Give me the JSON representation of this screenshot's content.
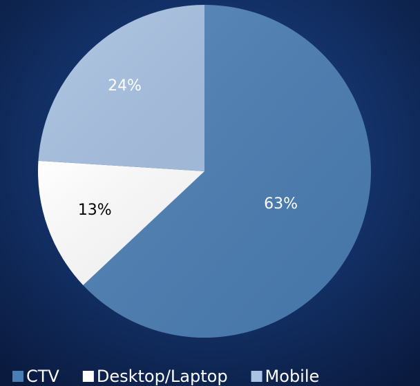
{
  "chart_data": {
    "type": "pie",
    "categories": [
      "CTV",
      "Desktop/Laptop",
      "Mobile"
    ],
    "values": [
      63,
      13,
      24
    ],
    "value_labels": [
      "63%",
      "13%",
      "24%"
    ],
    "colors": [
      "#4a7db3",
      "#ffffff",
      "#a9c3e3"
    ],
    "legend": "bottom"
  }
}
